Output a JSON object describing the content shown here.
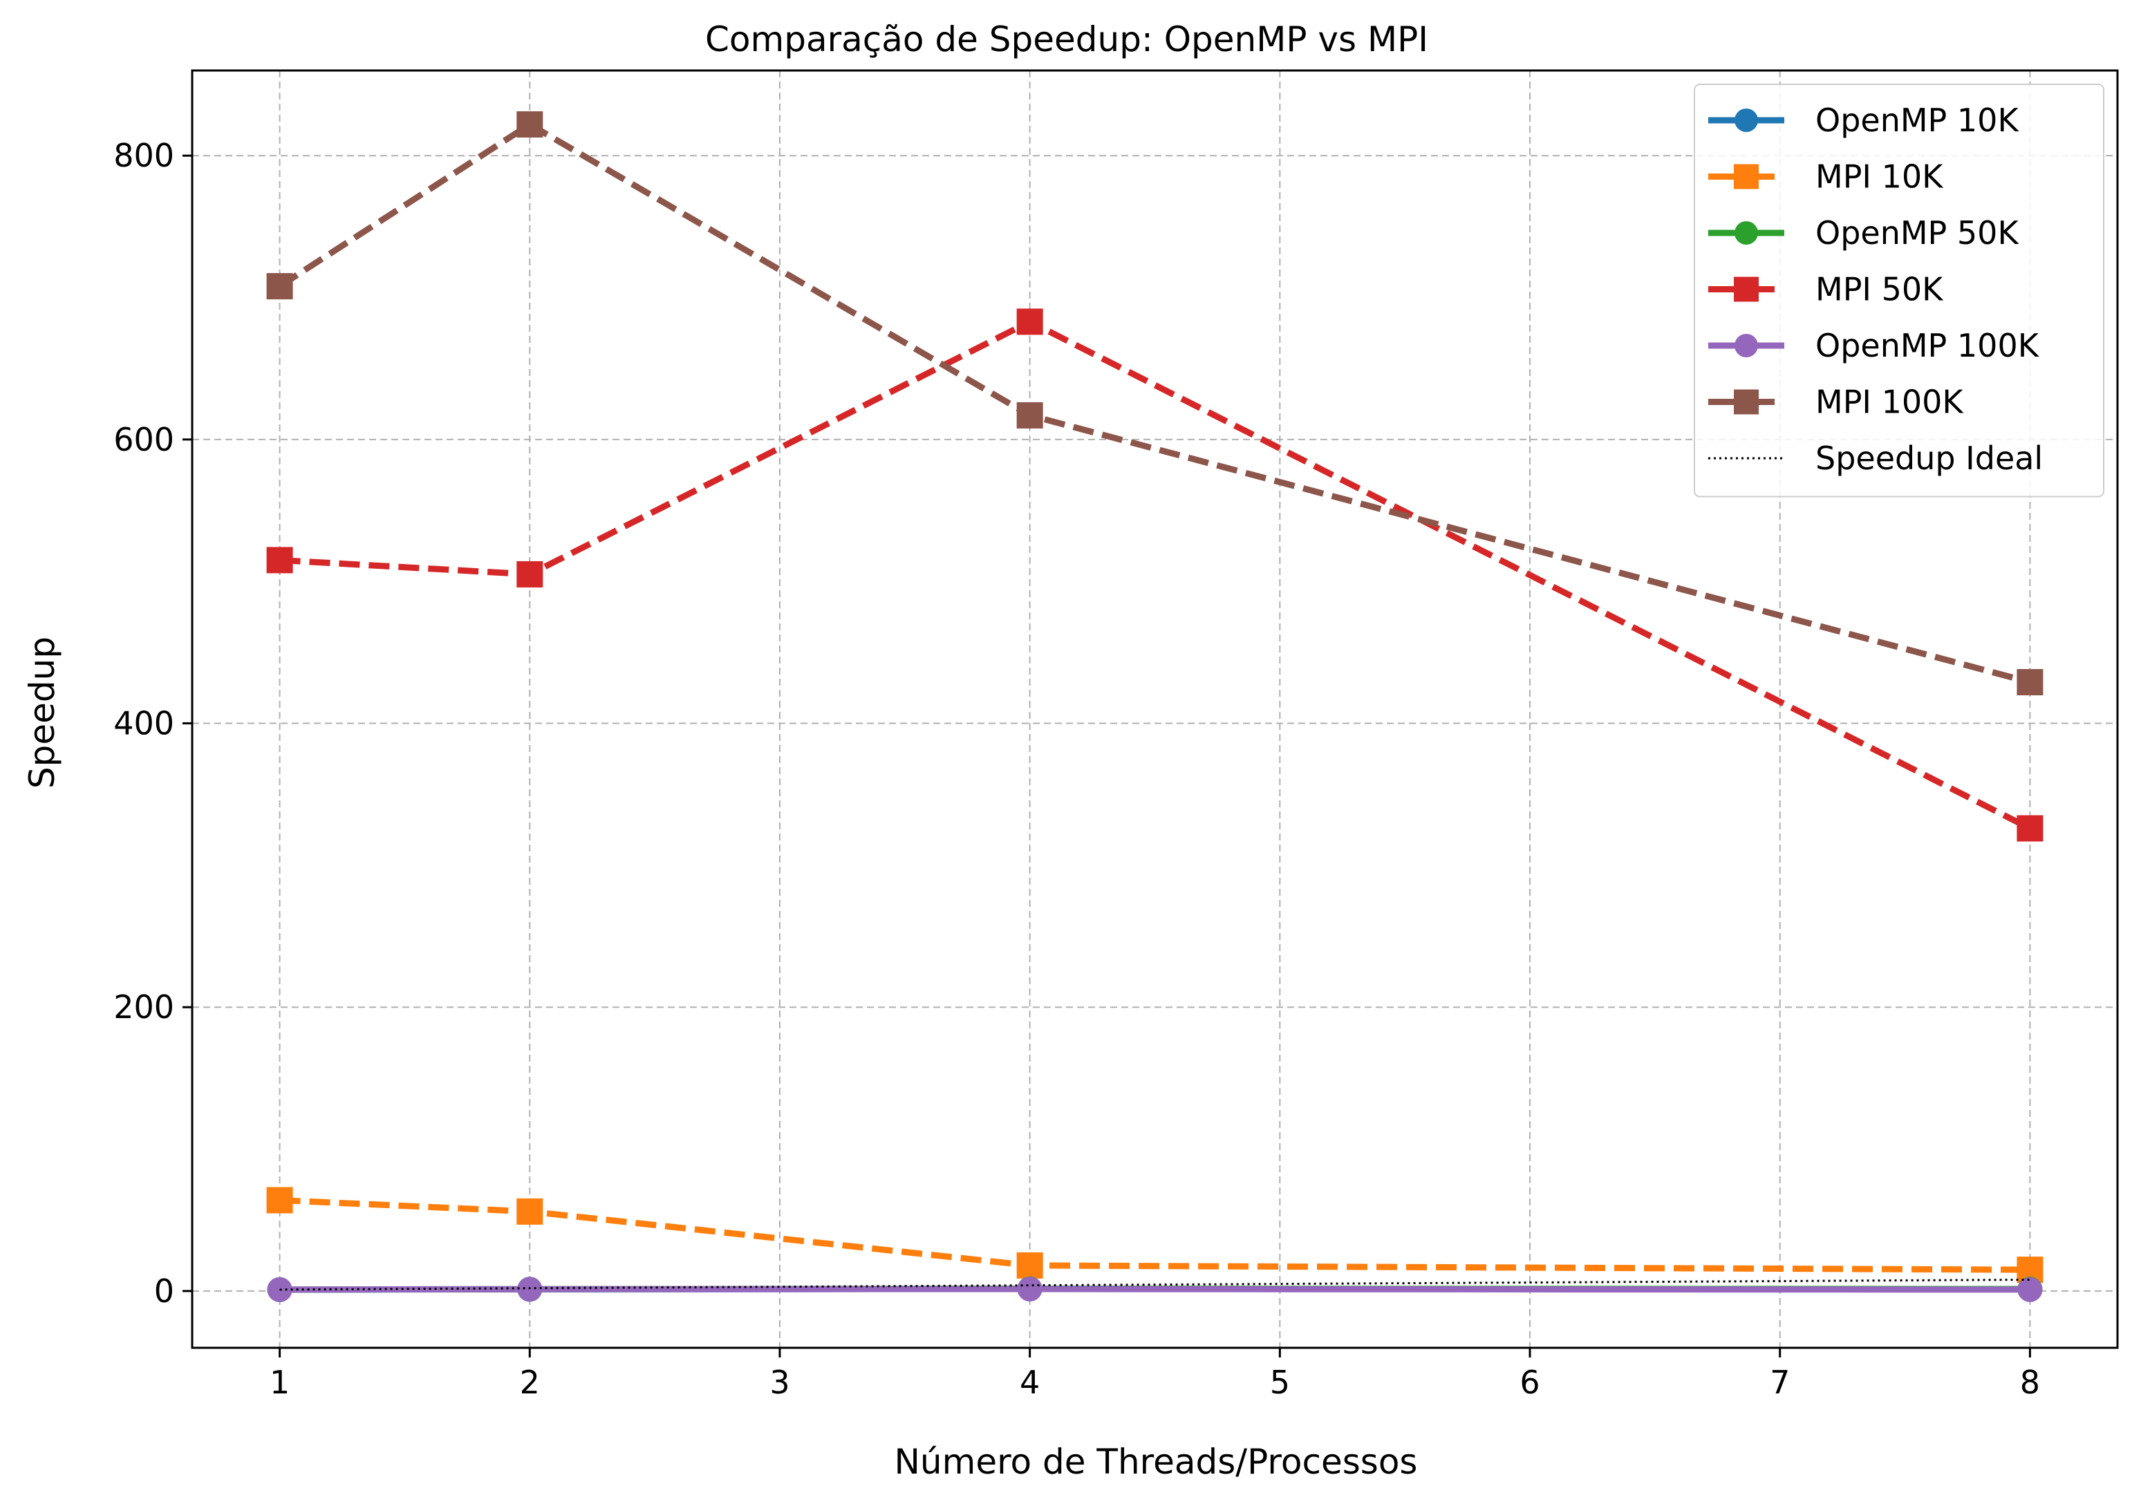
{
  "chart_data": {
    "type": "line",
    "title": "Comparação de Speedup: OpenMP vs MPI",
    "xlabel": "Número de Threads/Processos",
    "ylabel": "Speedup",
    "xlim": [
      0.65,
      8.35
    ],
    "ylim": [
      -40,
      860
    ],
    "xticks": [
      1,
      2,
      3,
      4,
      5,
      6,
      7,
      8
    ],
    "yticks": [
      0,
      200,
      400,
      600,
      800
    ],
    "grid": true,
    "legend_position": "top-right",
    "series": [
      {
        "name": "OpenMP 10K",
        "color": "#1f77b4",
        "marker": "circle",
        "dash": "solid",
        "x": [
          1,
          2,
          4,
          8
        ],
        "values": [
          1.0,
          1.2,
          1.5,
          1.3
        ]
      },
      {
        "name": "MPI 10K",
        "color": "#ff7f0e",
        "marker": "square",
        "dash": "dashed",
        "x": [
          1,
          2,
          4,
          8
        ],
        "values": [
          64,
          56,
          18,
          15
        ]
      },
      {
        "name": "OpenMP 50K",
        "color": "#2ca02c",
        "marker": "circle",
        "dash": "solid",
        "x": [
          1,
          2,
          4,
          8
        ],
        "values": [
          1.0,
          1.3,
          1.6,
          1.4
        ]
      },
      {
        "name": "MPI 50K",
        "color": "#d62728",
        "marker": "square",
        "dash": "dashed",
        "x": [
          1,
          2,
          4,
          8
        ],
        "values": [
          515,
          505,
          683,
          326
        ]
      },
      {
        "name": "OpenMP 100K",
        "color": "#9467bd",
        "marker": "circle",
        "dash": "solid",
        "x": [
          1,
          2,
          4,
          8
        ],
        "values": [
          1.0,
          1.3,
          1.4,
          1.0
        ]
      },
      {
        "name": "MPI 100K",
        "color": "#8c564b",
        "marker": "square",
        "dash": "dashed",
        "x": [
          1,
          2,
          4,
          8
        ],
        "values": [
          708,
          822,
          617,
          429
        ]
      },
      {
        "name": "Speedup Ideal",
        "color": "#000000",
        "marker": "none",
        "dash": "dotted",
        "x": [
          1,
          2,
          4,
          8
        ],
        "values": [
          1,
          2,
          4,
          8
        ]
      }
    ]
  }
}
